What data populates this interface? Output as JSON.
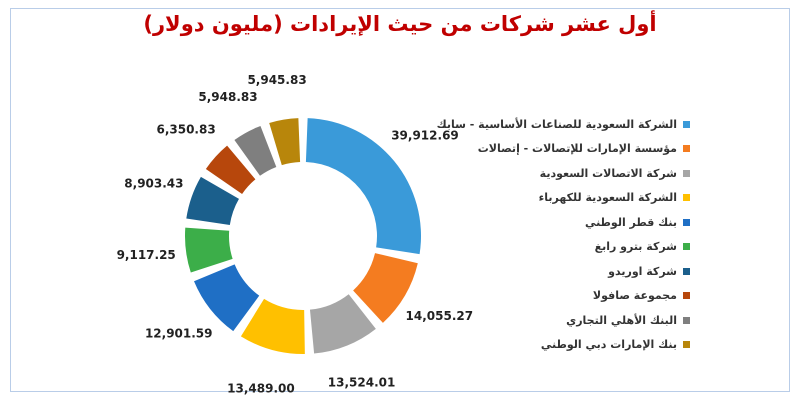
{
  "chart_data": {
    "type": "pie",
    "title": "أول عشر شركات من حيث الإيرادات (مليون دولار)",
    "categories": [
      "الشركة السعودية للصناعات الأساسية - سابك",
      "مؤسسة الإمارات للإتصالات - إتصالات",
      "شركة الاتصالات السعودية",
      "الشركة السعودية للكهرباء",
      "بنك قطر الوطني",
      "شركة بترو رابغ",
      "شركة اوريدو",
      "مجموعة صافولا",
      "البنك الأهلي التجاري",
      "بنك الإمارات دبي الوطني"
    ],
    "values": [
      39912.69,
      14055.27,
      13524.01,
      13489.0,
      12901.59,
      9117.25,
      8903.43,
      6350.83,
      5948.83,
      5945.83
    ],
    "value_labels": [
      "39,912.69",
      "14,055.27",
      "13,524.01",
      "13,489.00",
      "12,901.59",
      "9,117.25",
      "8,903.43",
      "6,350.83",
      "5,948.83",
      "5,945.83"
    ],
    "colors": [
      "#3a9ad9",
      "#f47c20",
      "#a6a6a6",
      "#ffc000",
      "#1f6fc5",
      "#3cae49",
      "#1b5f8c",
      "#b7470c",
      "#7f7f7f",
      "#b8860b"
    ],
    "legend_position": "right",
    "donut": true
  }
}
